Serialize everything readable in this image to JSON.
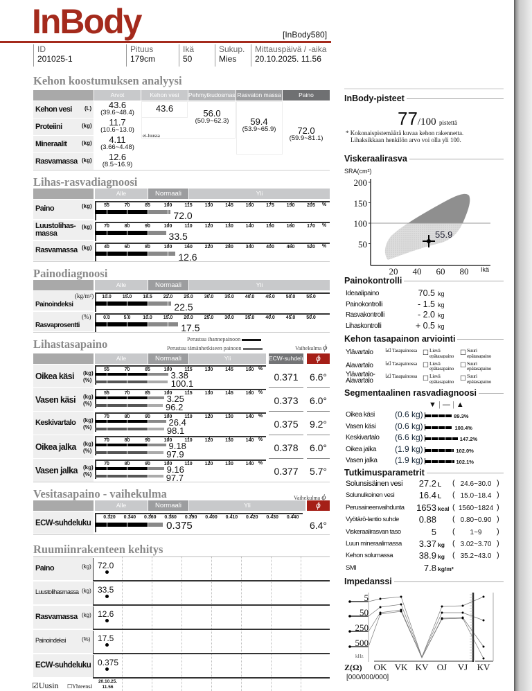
{
  "header": {
    "logo": "InBody",
    "model": "[InBody580]",
    "fields": [
      {
        "label": "ID",
        "value": "201025-1"
      },
      {
        "label": "Pituus",
        "value": "179cm"
      },
      {
        "label": "Ikä",
        "value": "50"
      },
      {
        "label": "Sukup.",
        "value": "Mies"
      },
      {
        "label": "Mittauspäivä / -aika",
        "value": "20.10.2025. 11.56"
      }
    ]
  },
  "composition": {
    "title": "Kehon koostumuksen analyysi",
    "columns": [
      "Arvot",
      "Kehon vesi",
      "Pehmytkudosmassa",
      "Rasvaton massa",
      "Paino"
    ],
    "rows": [
      {
        "label": "Kehon vesi",
        "unit": "(L)",
        "value": "43.6",
        "range": "(39.6~48.4)"
      },
      {
        "label": "Proteiini",
        "unit": "(kg)",
        "value": "11.7",
        "range": "(10.6~13.0)"
      },
      {
        "label": "Mineraalit",
        "unit": "(kg)",
        "value": "4.11",
        "range": "(3.66~4.48)"
      },
      {
        "label": "Rasvamassa",
        "unit": "(kg)",
        "value": "12.6",
        "range": "(8.5~16.9)"
      }
    ],
    "body_water": "43.6",
    "soft_lean": {
      "value": "56.0",
      "range": "(50.9~62.3)"
    },
    "note": "ei-luussa",
    "fat_free": {
      "value": "59.4",
      "range": "(53.9~65.9)"
    },
    "weight": {
      "value": "72.0",
      "range": "(59.9~81.1)"
    }
  },
  "scale_header": {
    "under": "Alle",
    "normal": "Normaali",
    "over": "Yli"
  },
  "muscle_fat": {
    "title": "Lihas-rasvadiagnoosi",
    "rows": [
      {
        "label": "Paino",
        "unit": "(kg)",
        "ticks": [
          "55",
          "70",
          "85",
          "100",
          "115",
          "130",
          "145",
          "160",
          "175",
          "190",
          "205"
        ],
        "pct_sign": "%",
        "value": "72.0",
        "bar_percent": 102
      },
      {
        "label": "Luustolihas-\nmassa",
        "unit": "(kg)",
        "ticks": [
          "70",
          "80",
          "90",
          "100",
          "110",
          "120",
          "130",
          "140",
          "150",
          "160",
          "170"
        ],
        "pct_sign": "%",
        "value": "33.5",
        "bar_percent": 99
      },
      {
        "label": "Rasvamassa",
        "unit": "(kg)",
        "ticks": [
          "40",
          "60",
          "80",
          "100",
          "160",
          "220",
          "280",
          "340",
          "400",
          "460",
          "520"
        ],
        "pct_sign": "%",
        "value": "12.6",
        "bar_percent": 122
      }
    ]
  },
  "obesity": {
    "title": "Painodiagnoosi",
    "rows": [
      {
        "label": "Painoindeksi",
        "unit": "(kg/m²)",
        "ticks": [
          "10.0",
          "15.0",
          "18.5",
          "22.0",
          "25.0",
          "30.0",
          "35.0",
          "40.0",
          "45.0",
          "50.0",
          "55.0"
        ],
        "pct_sign": "",
        "value": "22.5",
        "bar_percent": 22.5
      },
      {
        "label": "Rasvaprosentti",
        "unit": "(%)",
        "ticks": [
          "0.0",
          "5.0",
          "10.0",
          "15.0",
          "20.0",
          "25.0",
          "30.0",
          "35.0",
          "40.0",
          "45.0",
          "50.0"
        ],
        "pct_sign": "",
        "value": "17.5",
        "bar_percent": 17.5
      }
    ]
  },
  "segmental_lean": {
    "title": "Lihastasapaino",
    "legend": [
      "Perustuu ihannepainoon",
      "Perustuu tämänhetkiseen painoon"
    ],
    "phase_label": "Vaihekulma",
    "phi": "ϕ",
    "ecw_header": "ECW-suhdeluku",
    "rows": [
      {
        "label": "Oikea käsi",
        "unit_kg": "(kg)",
        "unit_pct": "(%)",
        "ticks": [
          "55",
          "70",
          "85",
          "100",
          "115",
          "130",
          "145",
          "160"
        ],
        "pct_sign": "%",
        "kg": "3.38",
        "kg_bar_percent": 100,
        "pct": "100.1",
        "ecw": "0.371",
        "phase": "6.6°"
      },
      {
        "label": "Vasen käsi",
        "unit_kg": "(kg)",
        "unit_pct": "(%)",
        "ticks": [
          "55",
          "70",
          "85",
          "100",
          "115",
          "130",
          "145",
          "160"
        ],
        "pct_sign": "%",
        "kg": "3.25",
        "kg_bar_percent": 97,
        "pct": "96.2",
        "ecw": "0.373",
        "phase": "6.0°"
      },
      {
        "label": "Keskivartalo",
        "unit_kg": "(kg)",
        "unit_pct": "(%)",
        "ticks": [
          "70",
          "80",
          "90",
          "100",
          "110",
          "120",
          "130",
          "140"
        ],
        "pct_sign": "%",
        "kg": "26.4",
        "kg_bar_percent": 99,
        "pct": "98.1",
        "ecw": "0.375",
        "phase": "9.2°"
      },
      {
        "label": "Oikea jalka",
        "unit_kg": "(kg)",
        "unit_pct": "(%)",
        "ticks": [
          "70",
          "80",
          "90",
          "100",
          "110",
          "120",
          "130",
          "140"
        ],
        "pct_sign": "%",
        "kg": "9.18",
        "kg_bar_percent": 99,
        "pct": "97.9",
        "ecw": "0.378",
        "phase": "6.0°"
      },
      {
        "label": "Vasen jalka",
        "unit_kg": "(kg)",
        "unit_pct": "(%)",
        "ticks": [
          "70",
          "80",
          "90",
          "100",
          "110",
          "120",
          "130",
          "140"
        ],
        "pct_sign": "%",
        "kg": "9.16",
        "kg_bar_percent": 98,
        "pct": "97.7",
        "ecw": "0.377",
        "phase": "5.7°"
      }
    ]
  },
  "ecw": {
    "title": "Vesitasapaino - vaihekulma",
    "phase_label": "Vaihekulma",
    "phi": "ϕ",
    "row": {
      "label": "ECW-suhdeluku",
      "ticks": [
        "0.320",
        "0.340",
        "0.360",
        "0.380",
        "0.390",
        "0.400",
        "0.410",
        "0.420",
        "0.430",
        "0.440"
      ],
      "value": "0.375",
      "bar_percent": 0.375,
      "phase": "6.4°"
    }
  },
  "history": {
    "title": "Ruumiinrakenteen kehitys",
    "rows": [
      {
        "label": "Paino",
        "unit": "(kg)",
        "value": "72.0"
      },
      {
        "label": "Luustolihasmassa",
        "unit": "(kg)",
        "value": "33.5"
      },
      {
        "label": "Rasvamassa",
        "unit": "(kg)",
        "value": "12.6"
      },
      {
        "label": "Painoindeksi",
        "unit": "(%)",
        "value": "17.5"
      },
      {
        "label": "ECW-suhdeluku",
        "unit": "",
        "value": "0.375"
      }
    ],
    "latest": "Uusin",
    "total": "Yhteensä",
    "date": "20.10.25.",
    "time": "11.56"
  },
  "score": {
    "title": "InBody-pisteet",
    "value": "77",
    "max": "/100",
    "unit": "pistettä",
    "note": "* Kokonaispistemäärä kuvaa kehon rakennetta.",
    "note2": "Lihaksikkaan henkilön arvo voi olla yli 100."
  },
  "visceral": {
    "title": "Viskeraalirasva",
    "y_label": "SRA(cm²)",
    "x_label": "Ikä",
    "y_ticks": [
      "200",
      "150",
      "100",
      "50"
    ],
    "x_ticks": [
      "20",
      "40",
      "60",
      "80"
    ],
    "point": {
      "age": 50,
      "value": 55.9,
      "label": "55.9"
    }
  },
  "weight_control": {
    "title": "Painokontrolli",
    "rows": [
      {
        "label": "Ideaalipaino",
        "value": "70.5",
        "unit": "kg"
      },
      {
        "label": "Painokontrolli",
        "value": "- 1.5",
        "unit": "kg"
      },
      {
        "label": "Rasvakontrolli",
        "value": "- 2.0",
        "unit": "kg"
      },
      {
        "label": "Lihaskontrolli",
        "value": "+ 0.5",
        "unit": "kg"
      }
    ]
  },
  "balance": {
    "title": "Kehon tasapainon arviointi",
    "options": [
      "Tasapainossa",
      "Lievä epätasapaino",
      "Suuri epätasapaino"
    ],
    "rows": [
      {
        "label": "Ylävartalo",
        "selected": 0
      },
      {
        "label": "Alavartalo",
        "selected": 0
      },
      {
        "label": "Ylävartalo-\nAlavartalo",
        "selected": 0
      }
    ]
  },
  "segmental_fat": {
    "title": "Segmentaalinen rasvadiagnoosi",
    "symbols": [
      "▼",
      "—",
      "▲"
    ],
    "rows": [
      {
        "label": "Oikea käsi",
        "mass": "(0.6 kg)",
        "percent": "89.3%",
        "bar_percent": 89.3
      },
      {
        "label": "Vasen käsi",
        "mass": "(0.6 kg)",
        "percent": "100.4%",
        "bar_percent": 100.4
      },
      {
        "label": "Keskivartalo",
        "mass": "(6.6 kg)",
        "percent": "147.2%",
        "bar_percent": 147.2
      },
      {
        "label": "Oikea jalka",
        "mass": "(1.9 kg)",
        "percent": "102.0%",
        "bar_percent": 102.0
      },
      {
        "label": "Vasen jalka",
        "mass": "(1.9 kg)",
        "percent": "102.1%",
        "bar_percent": 102.1
      }
    ]
  },
  "research": {
    "title": "Tutkimusparametrit",
    "rows": [
      {
        "label": "Solunsisäinen vesi",
        "value": "27.2",
        "unit": "L",
        "range": "24.6~30.0"
      },
      {
        "label": "Solunulkoinen vesi",
        "value": "16.4",
        "unit": "L",
        "range": "15.0~18.4"
      },
      {
        "label": "Perusaineenvaihdunta",
        "value": "1653",
        "unit": "kcal",
        "range": "1560~1824"
      },
      {
        "label": "Vyötärö-lantio suhde",
        "value": "0.88",
        "unit": "",
        "range": "0.80~0.90"
      },
      {
        "label": "Viskeraalirasvan taso",
        "value": "5",
        "unit": "",
        "range": "1~9"
      },
      {
        "label": "Luun mineraalimassa",
        "value": "3.37",
        "unit": "kg",
        "range": "3.02~3.70"
      },
      {
        "label": "Kehon solumassa",
        "value": "38.9",
        "unit": "kg",
        "range": "35.2~43.0"
      },
      {
        "label": "SMI",
        "value": "7.8",
        "unit": "kg/m²",
        "range": ""
      }
    ]
  },
  "impedance": {
    "title": "Impedanssi",
    "frequencies": [
      "5",
      "50",
      "250",
      "500"
    ],
    "freq_unit": "kHz",
    "z_label": "Z(Ω)",
    "segments": [
      "OK",
      "VK",
      "KV",
      "OJ",
      "VJ",
      "KV"
    ],
    "values": "[000/000/000]"
  },
  "colors": {
    "brand": "#a42a1c",
    "phase_header": "#a51f17"
  }
}
